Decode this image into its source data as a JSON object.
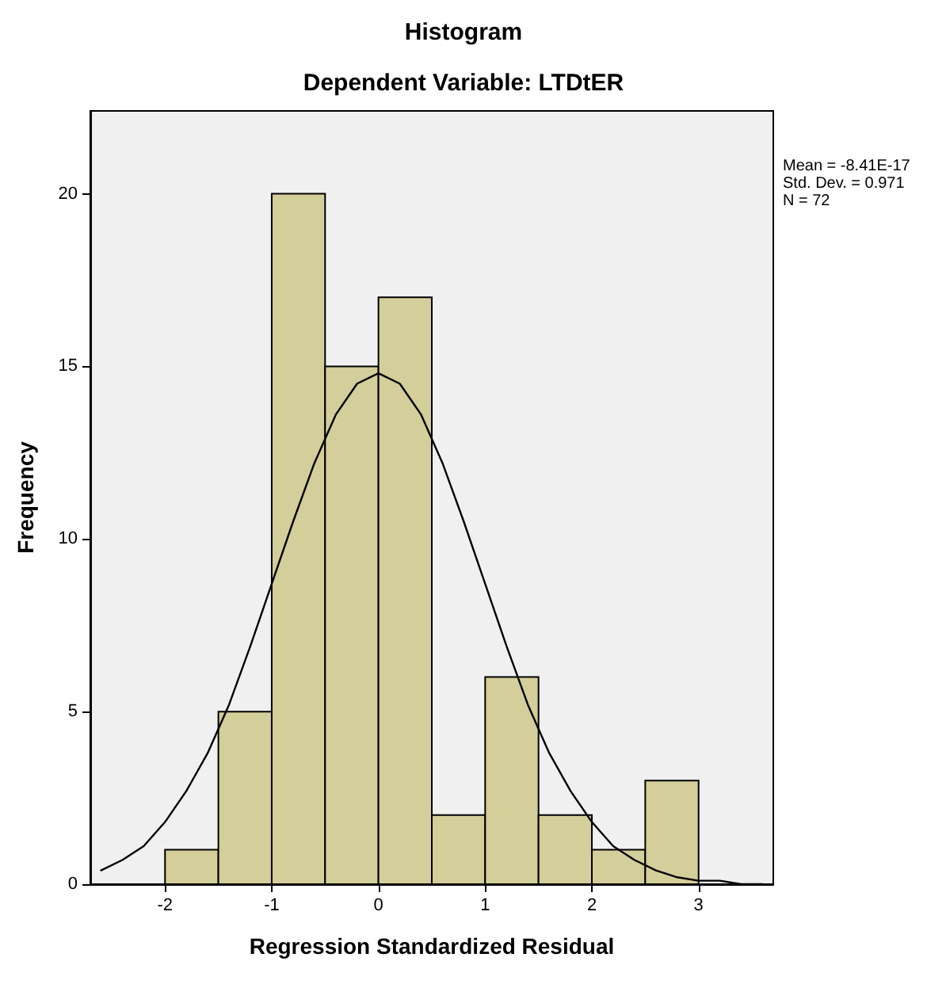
{
  "chart_data": {
    "type": "histogram",
    "title": "Histogram",
    "subtitle": "Dependent Variable: LTDtER",
    "xlabel": "Regression Standardized Residual",
    "ylabel": "Frequency",
    "bins": [
      -2,
      -1.5,
      -1,
      -0.5,
      0,
      0.5,
      1,
      1.5,
      2,
      2.5,
      3
    ],
    "values": [
      1,
      5,
      20,
      15,
      17,
      2,
      6,
      2,
      1,
      3
    ],
    "color": "#d3ce9a",
    "series": [
      {
        "type": "line",
        "color": "#000000",
        "x": [
          -2.6,
          -2.4,
          -2.2,
          -2.0,
          -1.8,
          -1.6,
          -1.4,
          -1.2,
          -1.0,
          -0.8,
          -0.6,
          -0.4,
          -0.2,
          0,
          0.2,
          0.4,
          0.6,
          0.8,
          1.0,
          1.2,
          1.4,
          1.6,
          1.8,
          2.0,
          2.2,
          2.4,
          2.6,
          2.8,
          3.0,
          3.2,
          3.4,
          3.6
        ],
        "values": [
          0.4,
          0.7,
          1.1,
          1.8,
          2.7,
          3.8,
          5.2,
          6.9,
          8.7,
          10.5,
          12.2,
          13.6,
          14.5,
          14.8,
          14.5,
          13.6,
          12.2,
          10.5,
          8.7,
          6.9,
          5.2,
          3.8,
          2.7,
          1.8,
          1.1,
          0.7,
          0.4,
          0.2,
          0.1,
          0.1,
          0.0,
          0.0
        ]
      }
    ],
    "marker": "none",
    "line_style": "solid",
    "xlim": [
      -2.7,
      3.7
    ],
    "xticks": [
      -2,
      -1,
      0,
      1,
      2,
      3
    ],
    "ylim": [
      0,
      22.4
    ],
    "yticks": [
      0,
      5,
      10,
      15,
      20
    ],
    "grid": false,
    "annotations": [
      "Mean = -8.41E-17",
      "Std. Dev. = 0.971",
      "N = 72"
    ]
  }
}
